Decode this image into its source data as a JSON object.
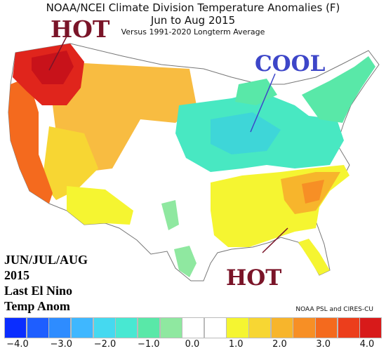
{
  "title": {
    "line1": "NOAA/NCEI Climate Division Temperature Anomalies (F)",
    "line2": "Jun to Aug 2015",
    "line3": "Versus 1991-2020 Longterm Average"
  },
  "annotations": {
    "hot_northwest": "HOT",
    "cool_midwest": "COOL",
    "hot_southeast": "HOT"
  },
  "caption": {
    "line1": "JUN/JUL/AUG",
    "line2": "2015",
    "line3": "Last El Nino",
    "line4": "Temp Anom"
  },
  "credit": "NOAA PSL and CIRES-CU",
  "legend": {
    "bins": [
      {
        "color": "#0a2dff"
      },
      {
        "color": "#1e5eff"
      },
      {
        "color": "#2e8cff"
      },
      {
        "color": "#3fb7ff"
      },
      {
        "color": "#45d9f0"
      },
      {
        "color": "#48e8d2"
      },
      {
        "color": "#59e8a8"
      },
      {
        "color": "#8fe8a0"
      },
      {
        "color": "#ffffff"
      },
      {
        "color": "#ffffff"
      },
      {
        "color": "#f5f531"
      },
      {
        "color": "#f7d633"
      },
      {
        "color": "#f7b52c"
      },
      {
        "color": "#f78f25"
      },
      {
        "color": "#f46a1e"
      },
      {
        "color": "#ec3e1c"
      },
      {
        "color": "#d81a1a"
      }
    ],
    "tick_labels": [
      "−4.0",
      "−3.0",
      "−2.0",
      "−1.0",
      "0.0",
      "1.0",
      "2.0",
      "3.0",
      "4.0"
    ]
  },
  "regions": {
    "northwest": {
      "anomaly": 4.0,
      "color": "#e0251c"
    },
    "west_coast": {
      "anomaly": 2.8,
      "color": "#f46a1e"
    },
    "intermountain": {
      "anomaly": 1.8,
      "color": "#f7b52c"
    },
    "midwest": {
      "anomaly": -1.2,
      "color": "#45d9c8"
    },
    "ohio_valley": {
      "anomaly": -0.8,
      "color": "#59e8a8"
    },
    "northeast": {
      "anomaly": -0.8,
      "color": "#59e8a8"
    },
    "southeast": {
      "anomaly": 1.5,
      "color": "#f7d633"
    },
    "gulf_coast": {
      "anomaly": 1.0,
      "color": "#f5f531"
    },
    "plains": {
      "anomaly": 0.0,
      "color": "#ffffff"
    }
  }
}
